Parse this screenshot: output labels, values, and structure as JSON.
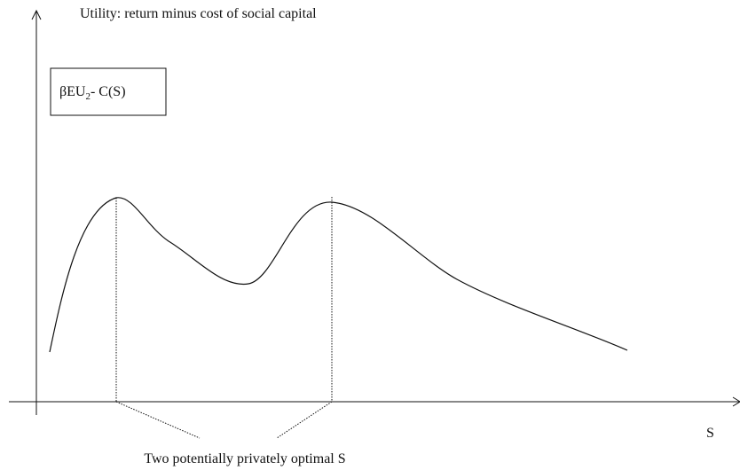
{
  "y_axis_label": "Utility: return minus cost of social capital",
  "box": {
    "main": "βEU",
    "sub": "2",
    "rest": "- C(S)"
  },
  "x_axis_label": "S",
  "annotation": "Two potentially privately optimal S"
}
